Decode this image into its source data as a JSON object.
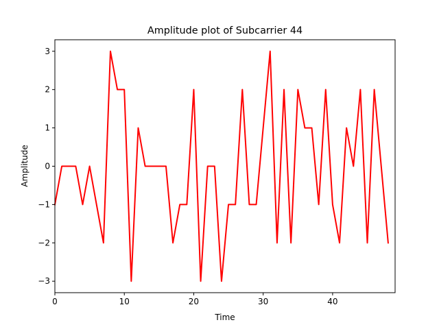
{
  "chart_data": {
    "type": "line",
    "title": "Amplitude plot of Subcarrier 44",
    "xlabel": "Time",
    "ylabel": "Amplitude",
    "xlim": [
      0,
      49
    ],
    "ylim": [
      -3.3,
      3.3
    ],
    "xticks": [
      0,
      10,
      20,
      30,
      40
    ],
    "yticks": [
      -3,
      -2,
      -1,
      0,
      1,
      2,
      3
    ],
    "xtick_labels": [
      "0",
      "10",
      "20",
      "30",
      "40"
    ],
    "ytick_labels": [
      "−3",
      "−2",
      "−1",
      "0",
      "1",
      "2",
      "3"
    ],
    "grid": false,
    "series": [
      {
        "name": "Subcarrier 44",
        "color": "#ff0000",
        "x": [
          0,
          1,
          2,
          3,
          4,
          5,
          6,
          7,
          8,
          9,
          10,
          11,
          12,
          13,
          14,
          15,
          16,
          17,
          18,
          19,
          20,
          21,
          22,
          23,
          24,
          25,
          26,
          27,
          28,
          29,
          30,
          31,
          32,
          33,
          34,
          35,
          36,
          37,
          38,
          39,
          40,
          41,
          42,
          43,
          44,
          45,
          46,
          47,
          48
        ],
        "values": [
          -1,
          0,
          0,
          0,
          -1,
          0,
          -1,
          -2,
          3,
          2,
          2,
          -3,
          1,
          0,
          0,
          0,
          0,
          -2,
          -1,
          -1,
          2,
          -3,
          0,
          0,
          -3,
          -1,
          -1,
          2,
          -1,
          -1,
          1,
          3,
          -2,
          2,
          -2,
          2,
          1,
          1,
          -1,
          2,
          -1,
          -2,
          1,
          0,
          2,
          -2,
          2,
          0,
          -2
        ]
      }
    ]
  }
}
